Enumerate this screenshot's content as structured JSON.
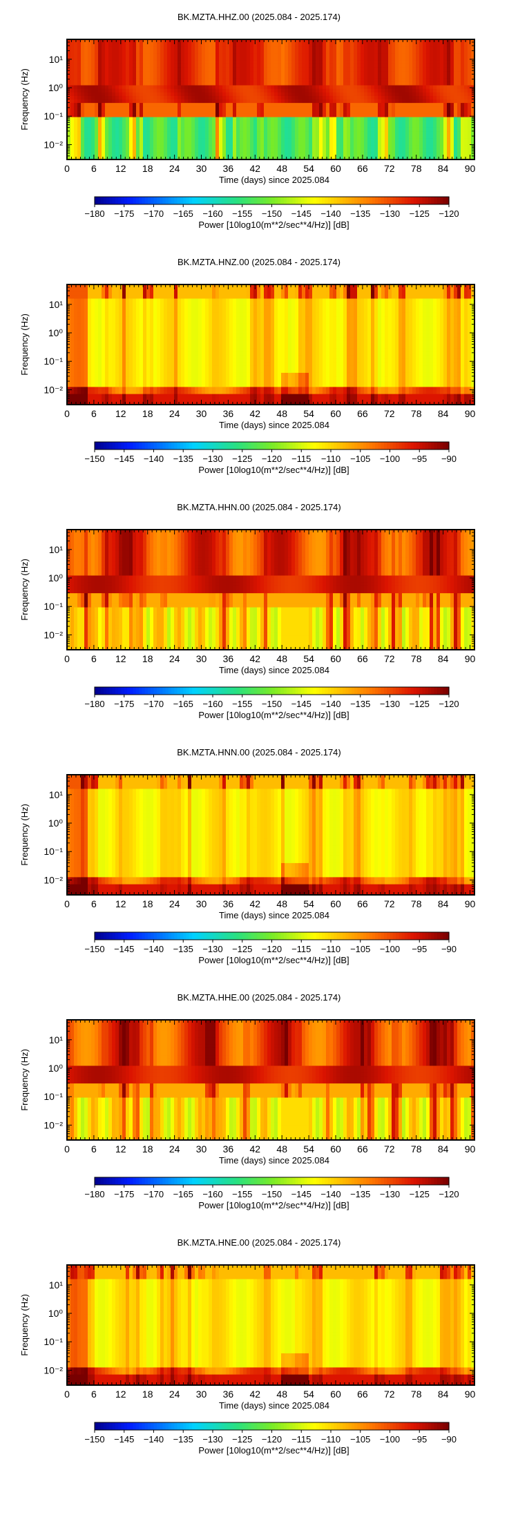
{
  "chart_data": [
    {
      "type": "heatmap",
      "title": "BK.MZTA.HHZ.00 (2025.084 - 2025.174)",
      "xlabel": "Time (days) since 2025.084",
      "ylabel": "Frequency (Hz)",
      "x_ticks": [
        "0",
        "6",
        "12",
        "18",
        "24",
        "30",
        "36",
        "42",
        "48",
        "54",
        "60",
        "66",
        "72",
        "78",
        "84",
        "90"
      ],
      "y_ticks": [
        "10¹",
        "10⁰",
        "10⁻¹",
        "10⁻²"
      ],
      "xlim": [
        0,
        91
      ],
      "ylim": [
        0.003,
        50
      ],
      "yscale": "log",
      "colorbar": {
        "label": "Power [10log10(m**2/sec**4/Hz)] [dB]",
        "ticks": [
          "−180",
          "−175",
          "−170",
          "−165",
          "−160",
          "−155",
          "−150",
          "−145",
          "−140",
          "−135",
          "−130",
          "−125",
          "−120"
        ],
        "range": [
          -180,
          -120
        ],
        "colormap": "jet-like (blue-cyan-green-yellow-red-darkred)"
      },
      "pattern": "broadband"
    },
    {
      "type": "heatmap",
      "title": "BK.MZTA.HNZ.00 (2025.084 - 2025.174)",
      "xlabel": "Time (days) since 2025.084",
      "ylabel": "Frequency (Hz)",
      "x_ticks": [
        "0",
        "6",
        "12",
        "18",
        "24",
        "30",
        "36",
        "42",
        "48",
        "54",
        "60",
        "66",
        "72",
        "78",
        "84",
        "90"
      ],
      "y_ticks": [
        "10¹",
        "10⁰",
        "10⁻¹",
        "10⁻²"
      ],
      "xlim": [
        0,
        91
      ],
      "ylim": [
        0.003,
        50
      ],
      "yscale": "log",
      "colorbar": {
        "label": "Power [10log10(m**2/sec**4/Hz)] [dB]",
        "ticks": [
          "−150",
          "−145",
          "−140",
          "−135",
          "−130",
          "−125",
          "−120",
          "−115",
          "−110",
          "−105",
          "−100",
          "−95",
          "−90"
        ],
        "range": [
          -150,
          -90
        ],
        "colormap": "jet-like (blue-cyan-green-yellow-red-darkred)"
      },
      "pattern": "strong-motion"
    },
    {
      "type": "heatmap",
      "title": "BK.MZTA.HHN.00 (2025.084 - 2025.174)",
      "xlabel": "Time (days) since 2025.084",
      "ylabel": "Frequency (Hz)",
      "x_ticks": [
        "0",
        "6",
        "12",
        "18",
        "24",
        "30",
        "36",
        "42",
        "48",
        "54",
        "60",
        "66",
        "72",
        "78",
        "84",
        "90"
      ],
      "y_ticks": [
        "10¹",
        "10⁰",
        "10⁻¹",
        "10⁻²"
      ],
      "xlim": [
        0,
        91
      ],
      "ylim": [
        0.003,
        50
      ],
      "yscale": "log",
      "colorbar": {
        "label": "Power [10log10(m**2/sec**4/Hz)] [dB]",
        "ticks": [
          "−180",
          "−175",
          "−170",
          "−165",
          "−160",
          "−155",
          "−150",
          "−145",
          "−140",
          "−135",
          "−130",
          "−125",
          "−120"
        ],
        "range": [
          -180,
          -120
        ],
        "colormap": "jet-like (blue-cyan-green-yellow-red-darkred)"
      },
      "pattern": "broadband-horizontal"
    },
    {
      "type": "heatmap",
      "title": "BK.MZTA.HNN.00 (2025.084 - 2025.174)",
      "xlabel": "Time (days) since 2025.084",
      "ylabel": "Frequency (Hz)",
      "x_ticks": [
        "0",
        "6",
        "12",
        "18",
        "24",
        "30",
        "36",
        "42",
        "48",
        "54",
        "60",
        "66",
        "72",
        "78",
        "84",
        "90"
      ],
      "y_ticks": [
        "10¹",
        "10⁰",
        "10⁻¹",
        "10⁻²"
      ],
      "xlim": [
        0,
        91
      ],
      "ylim": [
        0.003,
        50
      ],
      "yscale": "log",
      "colorbar": {
        "label": "Power [10log10(m**2/sec**4/Hz)] [dB]",
        "ticks": [
          "−150",
          "−145",
          "−140",
          "−135",
          "−130",
          "−125",
          "−120",
          "−115",
          "−110",
          "−105",
          "−100",
          "−95",
          "−90"
        ],
        "range": [
          -150,
          -90
        ],
        "colormap": "jet-like (blue-cyan-green-yellow-red-darkred)"
      },
      "pattern": "strong-motion"
    },
    {
      "type": "heatmap",
      "title": "BK.MZTA.HHE.00 (2025.084 - 2025.174)",
      "xlabel": "Time (days) since 2025.084",
      "ylabel": "Frequency (Hz)",
      "x_ticks": [
        "0",
        "6",
        "12",
        "18",
        "24",
        "30",
        "36",
        "42",
        "48",
        "54",
        "60",
        "66",
        "72",
        "78",
        "84",
        "90"
      ],
      "y_ticks": [
        "10¹",
        "10⁰",
        "10⁻¹",
        "10⁻²"
      ],
      "xlim": [
        0,
        91
      ],
      "ylim": [
        0.003,
        50
      ],
      "yscale": "log",
      "colorbar": {
        "label": "Power [10log10(m**2/sec**4/Hz)] [dB]",
        "ticks": [
          "−180",
          "−175",
          "−170",
          "−165",
          "−160",
          "−155",
          "−150",
          "−145",
          "−140",
          "−135",
          "−130",
          "−125",
          "−120"
        ],
        "range": [
          -180,
          -120
        ],
        "colormap": "jet-like (blue-cyan-green-yellow-red-darkred)"
      },
      "pattern": "broadband-horizontal"
    },
    {
      "type": "heatmap",
      "title": "BK.MZTA.HNE.00 (2025.084 - 2025.174)",
      "xlabel": "Time (days) since 2025.084",
      "ylabel": "Frequency (Hz)",
      "x_ticks": [
        "0",
        "6",
        "12",
        "18",
        "24",
        "30",
        "36",
        "42",
        "48",
        "54",
        "60",
        "66",
        "72",
        "78",
        "84",
        "90"
      ],
      "y_ticks": [
        "10¹",
        "10⁰",
        "10⁻¹",
        "10⁻²"
      ],
      "xlim": [
        0,
        91
      ],
      "ylim": [
        0.003,
        50
      ],
      "yscale": "log",
      "colorbar": {
        "label": "Power [10log10(m**2/sec**4/Hz)] [dB]",
        "ticks": [
          "−150",
          "−145",
          "−140",
          "−135",
          "−130",
          "−125",
          "−120",
          "−115",
          "−110",
          "−105",
          "−100",
          "−95",
          "−90"
        ],
        "range": [
          -150,
          -90
        ],
        "colormap": "jet-like (blue-cyan-green-yellow-red-darkred)"
      },
      "pattern": "strong-motion"
    }
  ]
}
